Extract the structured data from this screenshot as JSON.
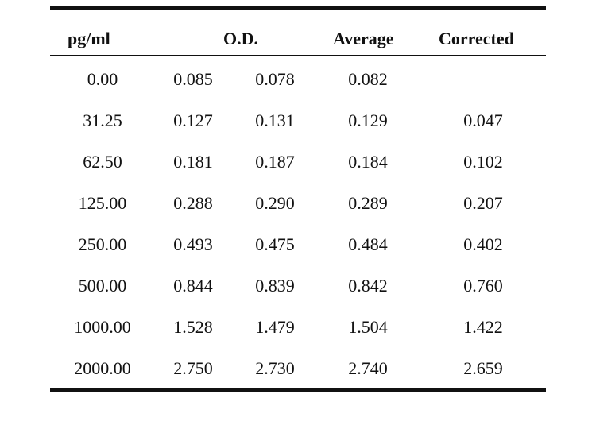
{
  "table": {
    "headers": {
      "conc": "pg/ml",
      "od": "O.D.",
      "average": "Average",
      "corrected": "Corrected"
    },
    "rows": [
      {
        "conc": "0.00",
        "od1": "0.085",
        "od2": "0.078",
        "average": "0.082",
        "corrected": ""
      },
      {
        "conc": "31.25",
        "od1": "0.127",
        "od2": "0.131",
        "average": "0.129",
        "corrected": "0.047"
      },
      {
        "conc": "62.50",
        "od1": "0.181",
        "od2": "0.187",
        "average": "0.184",
        "corrected": "0.102"
      },
      {
        "conc": "125.00",
        "od1": "0.288",
        "od2": "0.290",
        "average": "0.289",
        "corrected": "0.207"
      },
      {
        "conc": "250.00",
        "od1": "0.493",
        "od2": "0.475",
        "average": "0.484",
        "corrected": "0.402"
      },
      {
        "conc": "500.00",
        "od1": "0.844",
        "od2": "0.839",
        "average": "0.842",
        "corrected": "0.760"
      },
      {
        "conc": "1000.00",
        "od1": "1.528",
        "od2": "1.479",
        "average": "1.504",
        "corrected": "1.422"
      },
      {
        "conc": "2000.00",
        "od1": "2.750",
        "od2": "2.730",
        "average": "2.740",
        "corrected": "2.659"
      }
    ]
  }
}
